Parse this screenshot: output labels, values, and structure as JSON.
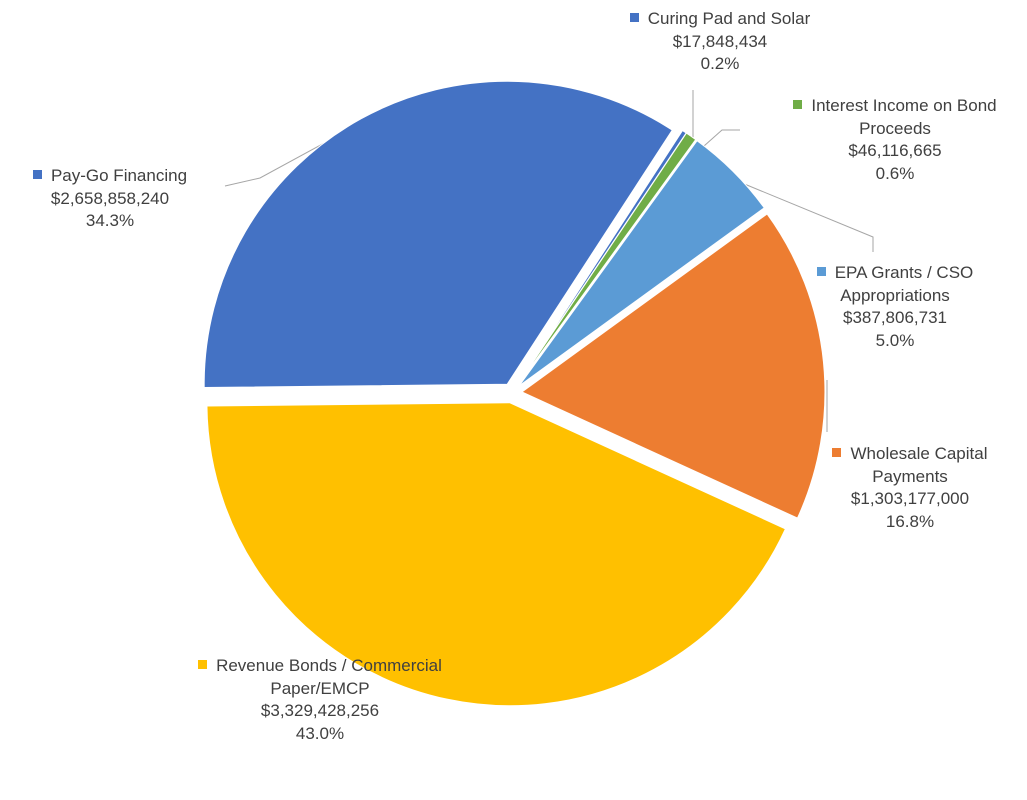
{
  "chart_data": {
    "type": "pie",
    "categories": [
      "Curing Pad and Solar",
      "Interest Income on Bond Proceeds",
      "EPA Grants / CSO Appropriations",
      "Wholesale Capital Payments",
      "Revenue Bonds / Commercial Paper/EMCP",
      "Pay-Go Financing"
    ],
    "values": [
      17848434,
      46116665,
      387806731,
      1303177000,
      3329428256,
      2658858240
    ],
    "value_labels": [
      "$17,848,434",
      "$46,116,665",
      "$387,806,731",
      "$1,303,177,000",
      "$3,329,428,256",
      "$2,658,858,240"
    ],
    "percentages": [
      0.2,
      0.6,
      5.0,
      16.8,
      43.0,
      34.3
    ],
    "percentage_labels": [
      "0.2%",
      "0.6%",
      "5.0%",
      "16.8%",
      "43.0%",
      "34.3%"
    ],
    "colors": [
      "#4472c4",
      "#70ad47",
      "#5b9bd5",
      "#ed7d31",
      "#ffc000",
      "#4472c4"
    ]
  }
}
